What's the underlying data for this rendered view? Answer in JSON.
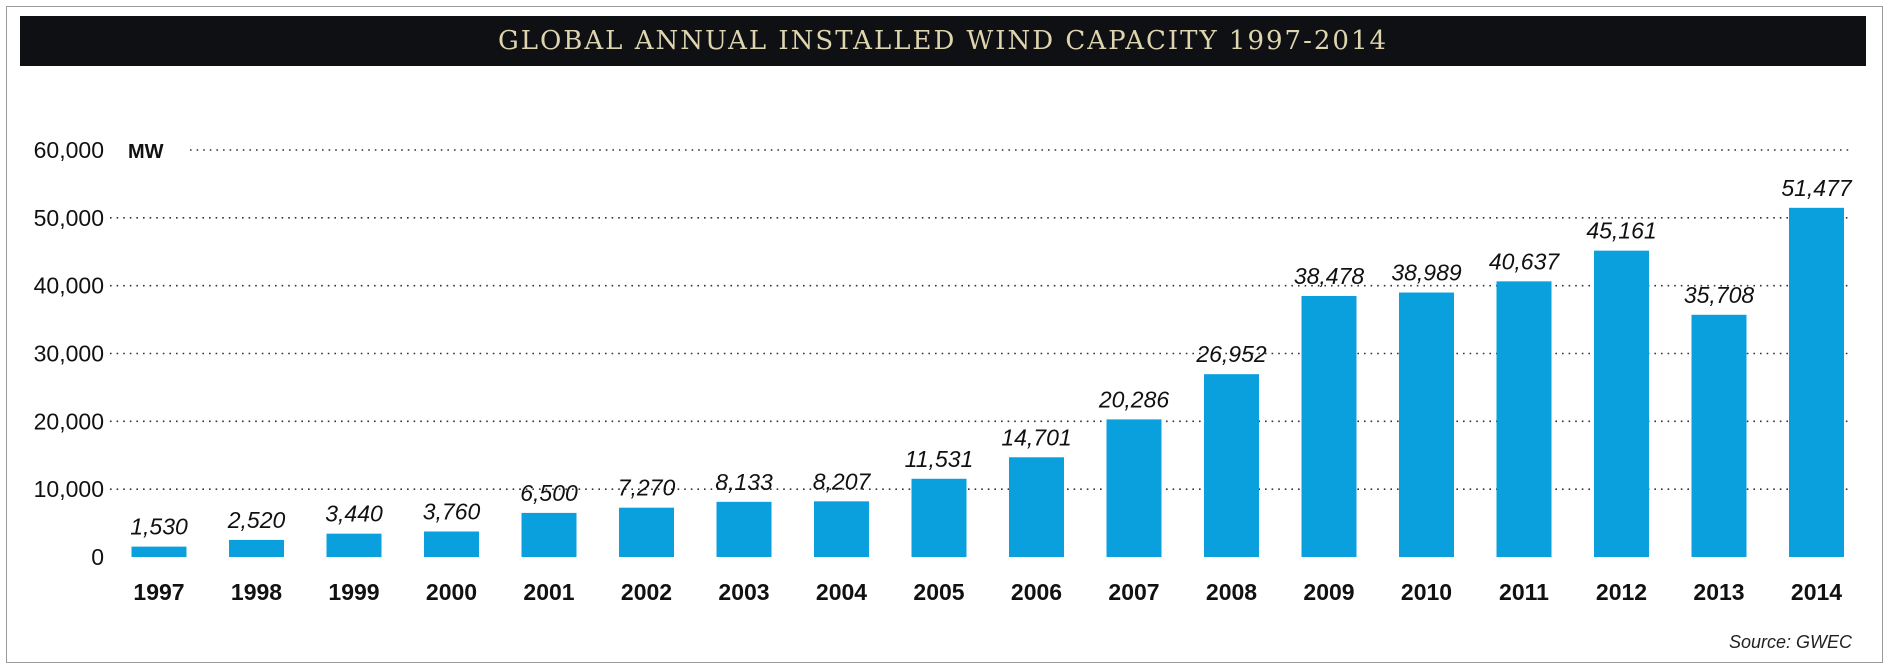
{
  "chart_data": {
    "type": "bar",
    "title": "GLOBAL ANNUAL INSTALLED WIND CAPACITY 1997-2014",
    "unit": "MW",
    "ylim": [
      0,
      60000
    ],
    "yticks": [
      0,
      10000,
      20000,
      30000,
      40000,
      50000,
      60000
    ],
    "ytick_labels": [
      "0",
      "10,000",
      "20,000",
      "30,000",
      "40,000",
      "50,000",
      "60,000"
    ],
    "grid": true,
    "categories": [
      "1997",
      "1998",
      "1999",
      "2000",
      "2001",
      "2002",
      "2003",
      "2004",
      "2005",
      "2006",
      "2007",
      "2008",
      "2009",
      "2010",
      "2011",
      "2012",
      "2013",
      "2014"
    ],
    "values": [
      1530,
      2520,
      3440,
      3760,
      6500,
      7270,
      8133,
      8207,
      11531,
      14701,
      20286,
      26952,
      38478,
      38989,
      40637,
      45161,
      35708,
      51477
    ],
    "value_labels": [
      "1,530",
      "2,520",
      "3,440",
      "3,760",
      "6,500",
      "7,270",
      "8,133",
      "8,207",
      "11,531",
      "14,701",
      "20,286",
      "26,952",
      "38,478",
      "38,989",
      "40,637",
      "45,161",
      "35,708",
      "51,477"
    ],
    "bar_color": "#0aa0de",
    "source": "Source: GWEC"
  }
}
